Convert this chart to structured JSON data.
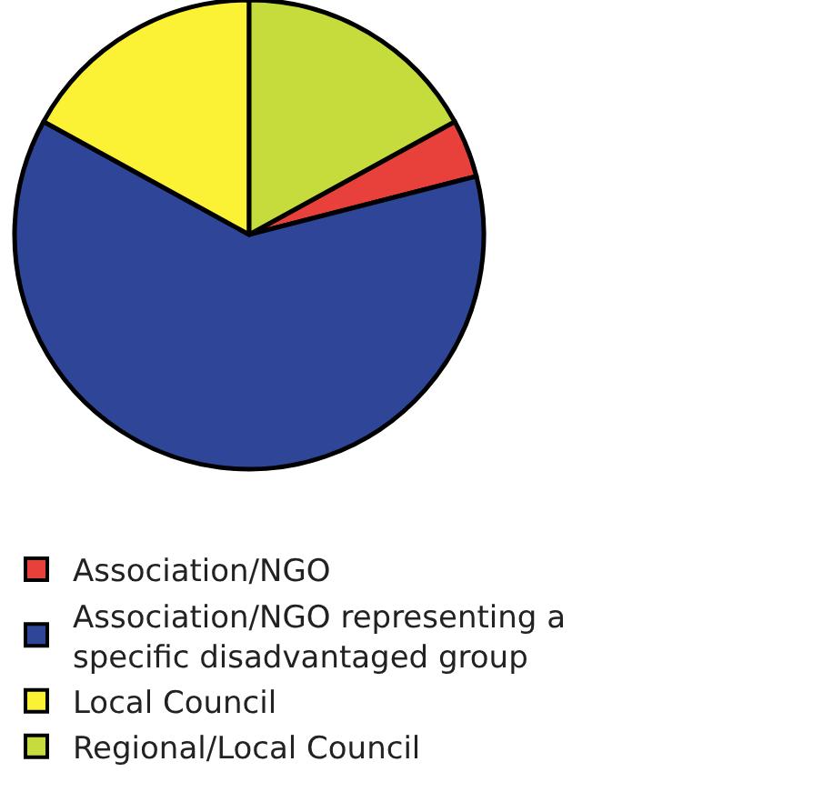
{
  "chart_data": {
    "type": "pie",
    "categories": [
      "Association/NGO",
      "Association/NGO representing a specific disadvantaged group",
      "Local Council",
      "Regional/Local Council"
    ],
    "values": [
      4,
      62,
      17,
      17
    ],
    "colors": [
      "#e8403a",
      "#2e4598",
      "#fbf235",
      "#c5dc3c"
    ],
    "legend": "bottom"
  }
}
